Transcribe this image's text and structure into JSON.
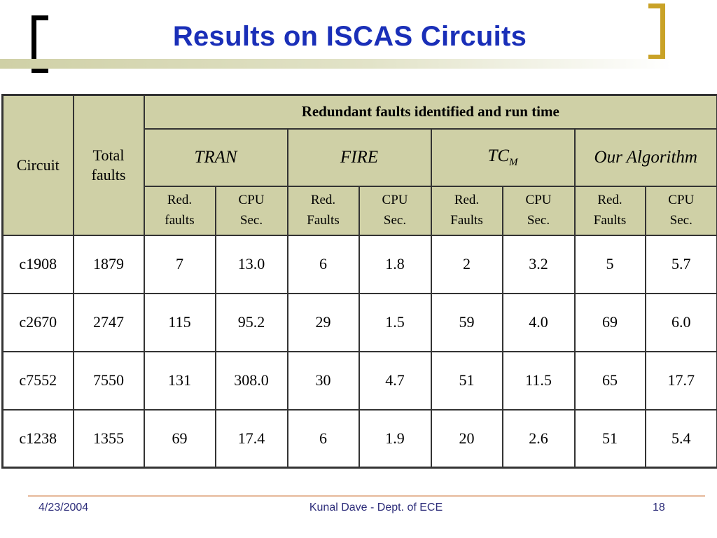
{
  "slide": {
    "title": "Results on ISCAS Circuits"
  },
  "table": {
    "group_header": "Redundant faults identified and run time",
    "circuit_header": "Circuit",
    "total_faults_header_line1": "Total",
    "total_faults_header_line2": "faults",
    "algorithms": [
      {
        "label": "TRAN",
        "subscript": ""
      },
      {
        "label": "FIRE",
        "subscript": ""
      },
      {
        "label": "TC",
        "subscript": "M"
      },
      {
        "label": "Our Algorithm",
        "subscript": ""
      }
    ],
    "sub_headers": [
      {
        "red_line1": "Red.",
        "red_line2": "faults",
        "cpu_line1": "CPU",
        "cpu_line2": "Sec."
      },
      {
        "red_line1": "Red.",
        "red_line2": "Faults",
        "cpu_line1": "CPU",
        "cpu_line2": "Sec."
      },
      {
        "red_line1": "Red.",
        "red_line2": "Faults",
        "cpu_line1": "CPU",
        "cpu_line2": "Sec."
      },
      {
        "red_line1": "Red.",
        "red_line2": "Faults",
        "cpu_line1": "CPU",
        "cpu_line2": "Sec."
      }
    ],
    "rows": [
      {
        "circuit": "c1908",
        "total": "1879",
        "values": [
          "7",
          "13.0",
          "6",
          "1.8",
          "2",
          "3.2",
          "5",
          "5.7"
        ]
      },
      {
        "circuit": "c2670",
        "total": "2747",
        "values": [
          "115",
          "95.2",
          "29",
          "1.5",
          "59",
          "4.0",
          "69",
          "6.0"
        ]
      },
      {
        "circuit": "c7552",
        "total": "7550",
        "values": [
          "131",
          "308.0",
          "30",
          "4.7",
          "51",
          "11.5",
          "65",
          "17.7"
        ]
      },
      {
        "circuit": "c1238",
        "total": "1355",
        "values": [
          "69",
          "17.4",
          "6",
          "1.9",
          "20",
          "2.6",
          "51",
          "5.4"
        ]
      }
    ]
  },
  "footer": {
    "date": "4/23/2004",
    "author": "Kunal Dave - Dept. of ECE",
    "page_number": "18"
  },
  "colors": {
    "title": "#1a2fb8",
    "header_fill": "#cfd0a6",
    "bracket_left": "#000000",
    "bracket_right": "#c9a227",
    "footer_text": "#2d2d7a"
  }
}
